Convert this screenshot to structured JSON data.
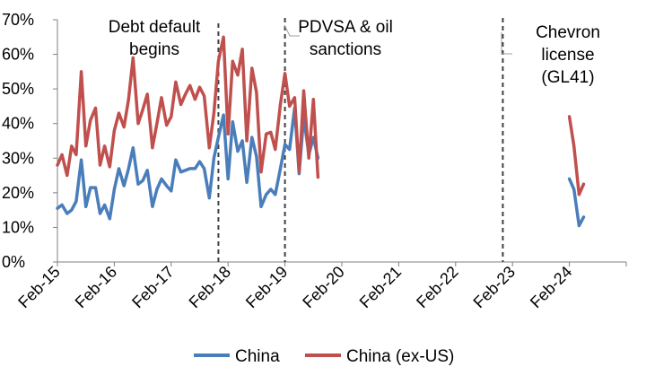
{
  "chart_data": {
    "type": "line",
    "title": "",
    "xlabel": "",
    "ylabel": "",
    "ylim": [
      0,
      70
    ],
    "yticks": [
      "0%",
      "10%",
      "20%",
      "30%",
      "40%",
      "50%",
      "60%",
      "70%"
    ],
    "yticks_values": [
      0,
      10,
      20,
      30,
      40,
      50,
      60,
      70
    ],
    "x_tick_labels": [
      "Feb-15",
      "Feb-16",
      "Feb-17",
      "Feb-18",
      "Feb-19",
      "Feb-20",
      "Feb-21",
      "Feb-22",
      "Feb-23",
      "Feb-24"
    ],
    "x_range_years": [
      2015.0,
      2025.0
    ],
    "grid": false,
    "legend_position": "bottom",
    "colors": {
      "China": "#4a7ebb",
      "China (ex-US)": "#c0504d",
      "event_line": "#404040"
    },
    "events": [
      {
        "x": 2017.83,
        "label_lines": [
          "Debt default",
          "begins"
        ]
      },
      {
        "x": 2019.0,
        "label_lines": [
          "PDVSA & oil",
          "sanctions"
        ]
      },
      {
        "x": 2022.83,
        "label_lines": [
          "Chevron",
          "license",
          "(GL41)"
        ]
      }
    ],
    "series": [
      {
        "name": "China",
        "segments": [
          [
            [
              2015.0,
              15.5
            ],
            [
              2015.08,
              16.5
            ],
            [
              2015.17,
              14
            ],
            [
              2015.25,
              15
            ],
            [
              2015.33,
              17.5
            ],
            [
              2015.42,
              29.5
            ],
            [
              2015.5,
              16
            ],
            [
              2015.58,
              21.5
            ],
            [
              2015.67,
              21.5
            ],
            [
              2015.75,
              14
            ],
            [
              2015.83,
              16.5
            ],
            [
              2015.92,
              12.5
            ],
            [
              2016.0,
              21
            ],
            [
              2016.08,
              27
            ],
            [
              2016.17,
              22
            ],
            [
              2016.25,
              27
            ],
            [
              2016.33,
              33
            ],
            [
              2016.42,
              22.5
            ],
            [
              2016.5,
              23.5
            ],
            [
              2016.58,
              26.5
            ],
            [
              2016.67,
              16
            ],
            [
              2016.75,
              21
            ],
            [
              2016.83,
              24
            ],
            [
              2016.92,
              22
            ],
            [
              2017.0,
              20.5
            ],
            [
              2017.08,
              29.5
            ],
            [
              2017.17,
              26
            ],
            [
              2017.25,
              26.5
            ],
            [
              2017.33,
              27
            ],
            [
              2017.42,
              27
            ],
            [
              2017.5,
              29
            ],
            [
              2017.58,
              27
            ],
            [
              2017.67,
              18.5
            ],
            [
              2017.75,
              30
            ],
            [
              2017.83,
              36
            ],
            [
              2017.92,
              42.5
            ],
            [
              2018.0,
              24
            ],
            [
              2018.08,
              40.5
            ],
            [
              2018.17,
              32
            ],
            [
              2018.25,
              35
            ],
            [
              2018.33,
              23
            ],
            [
              2018.42,
              36
            ],
            [
              2018.5,
              30.5
            ],
            [
              2018.58,
              16
            ],
            [
              2018.67,
              19.5
            ],
            [
              2018.75,
              21
            ],
            [
              2018.83,
              19.5
            ],
            [
              2018.92,
              27
            ],
            [
              2019.0,
              34
            ],
            [
              2019.08,
              32.5
            ],
            [
              2019.17,
              44.5
            ],
            [
              2019.25,
              25.5
            ],
            [
              2019.33,
              42
            ],
            [
              2019.42,
              31
            ],
            [
              2019.5,
              36
            ],
            [
              2019.58,
              30
            ]
          ],
          [
            [
              2024.0,
              24
            ],
            [
              2024.08,
              21
            ],
            [
              2024.17,
              10.5
            ],
            [
              2024.25,
              13
            ]
          ]
        ]
      },
      {
        "name": "China (ex-US)",
        "segments": [
          [
            [
              2015.0,
              28
            ],
            [
              2015.08,
              31
            ],
            [
              2015.17,
              25
            ],
            [
              2015.25,
              33.5
            ],
            [
              2015.33,
              31
            ],
            [
              2015.42,
              55
            ],
            [
              2015.5,
              33.5
            ],
            [
              2015.58,
              41
            ],
            [
              2015.67,
              44.5
            ],
            [
              2015.75,
              28
            ],
            [
              2015.83,
              33.5
            ],
            [
              2015.92,
              27.5
            ],
            [
              2016.0,
              38
            ],
            [
              2016.08,
              43
            ],
            [
              2016.17,
              39
            ],
            [
              2016.25,
              47
            ],
            [
              2016.33,
              59
            ],
            [
              2016.42,
              40
            ],
            [
              2016.5,
              44
            ],
            [
              2016.58,
              48.5
            ],
            [
              2016.67,
              33
            ],
            [
              2016.75,
              40
            ],
            [
              2016.83,
              47.5
            ],
            [
              2016.92,
              39.5
            ],
            [
              2017.0,
              42
            ],
            [
              2017.08,
              52
            ],
            [
              2017.17,
              45.5
            ],
            [
              2017.25,
              48.5
            ],
            [
              2017.33,
              51
            ],
            [
              2017.42,
              47
            ],
            [
              2017.5,
              50.5
            ],
            [
              2017.58,
              48
            ],
            [
              2017.67,
              33
            ],
            [
              2017.75,
              43
            ],
            [
              2017.83,
              58
            ],
            [
              2017.92,
              65
            ],
            [
              2018.0,
              37
            ],
            [
              2018.08,
              58
            ],
            [
              2018.17,
              54
            ],
            [
              2018.25,
              61.5
            ],
            [
              2018.33,
              35
            ],
            [
              2018.42,
              56
            ],
            [
              2018.5,
              49
            ],
            [
              2018.58,
              26
            ],
            [
              2018.67,
              37
            ],
            [
              2018.75,
              37.5
            ],
            [
              2018.83,
              32.5
            ],
            [
              2018.92,
              45.5
            ],
            [
              2019.0,
              54.5
            ],
            [
              2019.08,
              45
            ],
            [
              2019.17,
              47.5
            ],
            [
              2019.25,
              26
            ],
            [
              2019.33,
              49.5
            ],
            [
              2019.42,
              30
            ],
            [
              2019.5,
              47
            ],
            [
              2019.58,
              24.5
            ]
          ],
          [
            [
              2024.0,
              42
            ],
            [
              2024.08,
              33.5
            ],
            [
              2024.17,
              19.5
            ],
            [
              2024.25,
              22.5
            ]
          ]
        ]
      }
    ]
  }
}
